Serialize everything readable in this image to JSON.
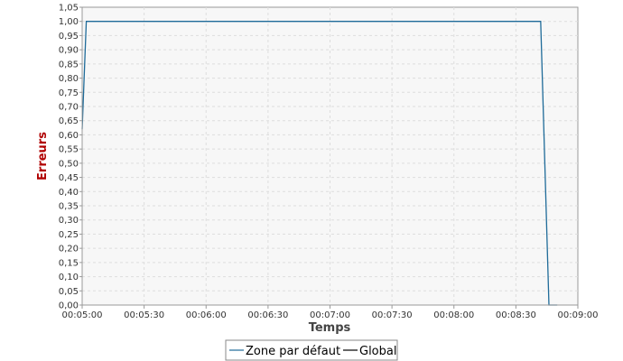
{
  "chart_data": {
    "type": "line",
    "title": "",
    "xlabel": "Temps",
    "ylabel": "Erreurs",
    "xlim": [
      "00:05:00",
      "00:09:00"
    ],
    "ylim": [
      0,
      1.05
    ],
    "x_ticks": [
      "00:05:00",
      "00:05:30",
      "00:06:00",
      "00:06:30",
      "00:07:00",
      "00:07:30",
      "00:08:00",
      "00:08:30",
      "00:09:00"
    ],
    "y_ticks": [
      "0,00",
      "0,05",
      "0,10",
      "0,15",
      "0,20",
      "0,25",
      "0,30",
      "0,35",
      "0,40",
      "0,45",
      "0,50",
      "0,55",
      "0,60",
      "0,65",
      "0,70",
      "0,75",
      "0,80",
      "0,85",
      "0,90",
      "0,95",
      "1,00",
      "1,05"
    ],
    "grid": true,
    "legend_position": "bottom-center",
    "series": [
      {
        "name": "Zone par défaut",
        "color": "#1f6b99",
        "points": [
          {
            "x": "00:05:00",
            "y": 0.62
          },
          {
            "x": "00:05:02",
            "y": 1.0
          },
          {
            "x": "00:08:42",
            "y": 1.0
          },
          {
            "x": "00:08:46",
            "y": 0.0
          },
          {
            "x": "00:08:50",
            "y": 0.0
          }
        ]
      },
      {
        "name": "Global",
        "color": "#000000",
        "points": []
      }
    ],
    "ylabel_color": "#b00000",
    "xlabel_color": "#444444"
  }
}
